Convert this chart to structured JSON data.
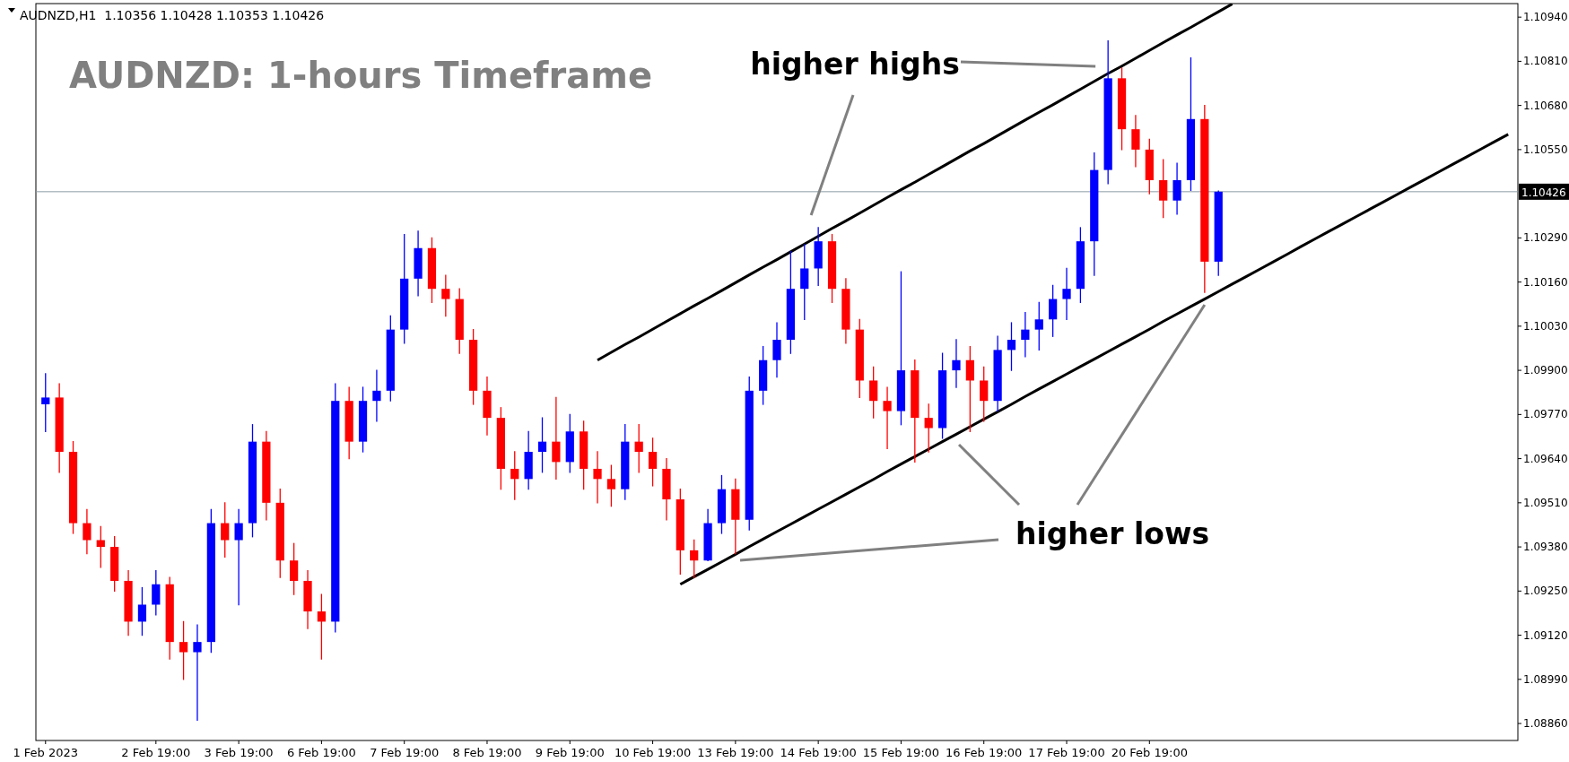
{
  "chart_data": {
    "type": "candlestick",
    "title": "AUDNZD: 1-hours Timeframe",
    "annotations": [
      "AUDNZD,H1  1.10356 1.10428 1.10353 1.10426",
      "higher highs",
      "higher lows"
    ],
    "categories": [
      "1 Feb 2023",
      null,
      null,
      null,
      null,
      null,
      null,
      null,
      "2 Feb 19:00",
      null,
      null,
      null,
      null,
      null,
      "3 Feb 19:00",
      null,
      null,
      null,
      null,
      null,
      "6 Feb 19:00",
      null,
      null,
      null,
      null,
      null,
      "7 Feb 19:00",
      null,
      null,
      null,
      null,
      null,
      "8 Feb 19:00",
      null,
      null,
      null,
      null,
      null,
      "9 Feb 19:00",
      null,
      null,
      null,
      null,
      null,
      "10 Feb 19:00",
      null,
      null,
      null,
      null,
      null,
      "13 Feb 19:00",
      null,
      null,
      null,
      null,
      null,
      "14 Feb 19:00",
      null,
      null,
      null,
      null,
      null,
      "15 Feb 19:00",
      null,
      null,
      null,
      null,
      null,
      "16 Feb 19:00",
      null,
      null,
      null,
      null,
      null,
      "17 Feb 19:00",
      null,
      null,
      null,
      null,
      null,
      "20 Feb 19:00",
      null,
      null,
      null,
      null,
      null,
      null,
      null,
      null,
      null,
      null,
      null,
      null,
      null,
      null,
      null,
      null,
      null,
      null,
      null,
      null,
      null,
      null,
      null,
      null,
      null,
      null
    ],
    "ylim": [
      1.0881,
      1.1098
    ],
    "yticks": [
      {
        "value": 1.0886,
        "label": "1.08860"
      },
      {
        "value": 1.0899,
        "label": "1.08990"
      },
      {
        "value": 1.0912,
        "label": "1.09120"
      },
      {
        "value": 1.0925,
        "label": "1.09250"
      },
      {
        "value": 1.0938,
        "label": "1.09380"
      },
      {
        "value": 1.0951,
        "label": "1.09510"
      },
      {
        "value": 1.0964,
        "label": "1.09640"
      },
      {
        "value": 1.0977,
        "label": "1.09770"
      },
      {
        "value": 1.099,
        "label": "1.09900"
      },
      {
        "value": 1.1003,
        "label": "1.10030"
      },
      {
        "value": 1.1016,
        "label": "1.10160"
      },
      {
        "value": 1.1029,
        "label": "1.10290"
      },
      {
        "value": 1.1055,
        "label": "1.10550"
      },
      {
        "value": 1.1068,
        "label": "1.10680"
      },
      {
        "value": 1.1081,
        "label": "1.10810"
      },
      {
        "value": 1.1094,
        "label": "1.10940"
      }
    ],
    "ref_lines": [
      {
        "axis": "y",
        "value": 1.10426,
        "label": "1.10426",
        "color": "#8c9aa6"
      }
    ],
    "series": [
      {
        "ohlc": [
          [
            1.098,
            1.0989,
            1.0972,
            1.0982
          ],
          [
            1.0982,
            1.0986,
            1.096,
            1.0966
          ],
          [
            1.0966,
            1.0969,
            1.0942,
            1.0945
          ],
          [
            1.0945,
            1.0949,
            1.0936,
            1.094
          ],
          [
            1.094,
            1.0944,
            1.0932,
            1.0938
          ],
          [
            1.0938,
            1.0941,
            1.0925,
            1.0928
          ],
          [
            1.0928,
            1.0931,
            1.0912,
            1.0916
          ],
          [
            1.0916,
            1.0926,
            1.0912,
            1.0921
          ],
          [
            1.0921,
            1.0931,
            1.0918,
            1.0927
          ],
          [
            1.0927,
            1.0929,
            1.0905,
            1.091
          ],
          [
            1.091,
            1.0916,
            1.0899,
            1.0907
          ],
          [
            1.0907,
            1.0915,
            1.0887,
            1.091
          ],
          [
            1.091,
            1.0949,
            1.0907,
            1.0945
          ],
          [
            1.0945,
            1.0951,
            1.0935,
            1.094
          ],
          [
            1.094,
            1.0949,
            1.0921,
            1.0945
          ],
          [
            1.0945,
            1.0974,
            1.0941,
            1.0969
          ],
          [
            1.0969,
            1.0972,
            1.0946,
            1.0951
          ],
          [
            1.0951,
            1.0955,
            1.0929,
            1.0934
          ],
          [
            1.0934,
            1.0939,
            1.0924,
            1.0928
          ],
          [
            1.0928,
            1.0931,
            1.0914,
            1.0919
          ],
          [
            1.0919,
            1.0924,
            1.0905,
            1.0916
          ],
          [
            1.0916,
            1.0986,
            1.0913,
            1.0981
          ],
          [
            1.0981,
            1.0985,
            1.0964,
            1.0969
          ],
          [
            1.0969,
            1.0985,
            1.0966,
            1.0981
          ],
          [
            1.0981,
            1.099,
            1.0975,
            1.0984
          ],
          [
            1.0984,
            1.1006,
            1.0981,
            1.1002
          ],
          [
            1.1002,
            1.103,
            1.0998,
            1.1017
          ],
          [
            1.1017,
            1.1031,
            1.1012,
            1.1026
          ],
          [
            1.1026,
            1.1029,
            1.101,
            1.1014
          ],
          [
            1.1014,
            1.1018,
            1.1006,
            1.1011
          ],
          [
            1.1011,
            1.1014,
            1.0995,
            1.0999
          ],
          [
            1.0999,
            1.1002,
            1.098,
            1.0984
          ],
          [
            1.0984,
            1.0988,
            1.0971,
            1.0976
          ],
          [
            1.0976,
            1.0979,
            1.0955,
            1.0961
          ],
          [
            1.0961,
            1.0966,
            1.0952,
            1.0958
          ],
          [
            1.0958,
            1.0972,
            1.0955,
            1.0966
          ],
          [
            1.0966,
            1.0976,
            1.096,
            1.0969
          ],
          [
            1.0969,
            1.0982,
            1.0958,
            1.0963
          ],
          [
            1.0963,
            1.0977,
            1.096,
            1.0972
          ],
          [
            1.0972,
            1.0975,
            1.0955,
            1.0961
          ],
          [
            1.0961,
            1.0966,
            1.0951,
            1.0958
          ],
          [
            1.0958,
            1.0962,
            1.095,
            1.0955
          ],
          [
            1.0955,
            1.0974,
            1.0952,
            1.0969
          ],
          [
            1.0969,
            1.0974,
            1.096,
            1.0966
          ],
          [
            1.0966,
            1.097,
            1.0956,
            1.0961
          ],
          [
            1.0961,
            1.0964,
            1.0946,
            1.0952
          ],
          [
            1.0952,
            1.0955,
            1.093,
            1.0937
          ],
          [
            1.0937,
            1.094,
            1.0929,
            1.0934
          ],
          [
            1.0934,
            1.0949,
            1.0934,
            1.0945
          ],
          [
            1.0945,
            1.0959,
            1.0942,
            1.0955
          ],
          [
            1.0955,
            1.0958,
            1.0936,
            1.0946
          ],
          [
            1.0946,
            1.0988,
            1.0943,
            1.0984
          ],
          [
            1.0984,
            1.0997,
            1.098,
            1.0993
          ],
          [
            1.0993,
            1.1004,
            1.0988,
            1.0999
          ],
          [
            1.0999,
            1.1025,
            1.0995,
            1.1014
          ],
          [
            1.1014,
            1.1027,
            1.1005,
            1.102
          ],
          [
            1.102,
            1.1032,
            1.1015,
            1.1028
          ],
          [
            1.1028,
            1.103,
            1.101,
            1.1014
          ],
          [
            1.1014,
            1.1017,
            1.0998,
            1.1002
          ],
          [
            1.1002,
            1.1005,
            1.0982,
            1.0987
          ],
          [
            1.0987,
            1.0991,
            1.0976,
            1.0981
          ],
          [
            1.0981,
            1.0985,
            1.0967,
            1.0978
          ],
          [
            1.0978,
            1.1019,
            1.0974,
            1.099
          ],
          [
            1.099,
            1.0993,
            1.0963,
            1.0976
          ],
          [
            1.0976,
            1.098,
            1.0966,
            1.0973
          ],
          [
            1.0973,
            1.0995,
            1.097,
            1.099
          ],
          [
            1.099,
            1.0999,
            1.0985,
            1.0993
          ],
          [
            1.0993,
            1.0997,
            1.0972,
            1.0987
          ],
          [
            1.0987,
            1.0991,
            1.0975,
            1.0981
          ],
          [
            1.0981,
            1.1,
            1.0978,
            1.0996
          ],
          [
            1.0996,
            1.1004,
            1.099,
            1.0999
          ],
          [
            1.0999,
            1.1007,
            1.0994,
            1.1002
          ],
          [
            1.1002,
            1.101,
            1.0996,
            1.1005
          ],
          [
            1.1005,
            1.1015,
            1.1,
            1.1011
          ],
          [
            1.1011,
            1.102,
            1.1005,
            1.1014
          ],
          [
            1.1014,
            1.1032,
            1.101,
            1.1028
          ],
          [
            1.1028,
            1.1054,
            1.1018,
            1.1049
          ],
          [
            1.1049,
            1.1087,
            1.1045,
            1.1076
          ],
          [
            1.1076,
            1.1079,
            1.1055,
            1.1061
          ],
          [
            1.1061,
            1.1065,
            1.105,
            1.1055
          ],
          [
            1.1055,
            1.1058,
            1.1042,
            1.1046
          ],
          [
            1.1046,
            1.1052,
            1.1035,
            1.104
          ],
          [
            1.104,
            1.1051,
            1.1036,
            1.1046
          ],
          [
            1.1046,
            1.1082,
            1.1043,
            1.1064
          ],
          [
            1.1064,
            1.1068,
            1.1013,
            1.1022
          ],
          [
            1.1022,
            1.10428,
            1.1018,
            1.10426
          ],
          null,
          null,
          null,
          null,
          null,
          null,
          null,
          null,
          null,
          null,
          null,
          null,
          null,
          null,
          null,
          null,
          null,
          null,
          null,
          null,
          null
        ]
      },
      {
        "type": "line",
        "color": "#000000",
        "values": [
          null,
          null,
          null,
          null,
          null,
          null,
          null,
          null,
          null,
          null,
          null,
          null,
          null,
          null,
          null,
          null,
          null,
          null,
          null,
          null,
          null,
          null,
          null,
          null,
          null,
          null,
          null,
          null,
          null,
          null,
          null,
          null,
          null,
          null,
          null,
          null,
          null,
          null,
          null,
          null,
          1.0993,
          1.09953,
          1.09976,
          1.09998,
          1.10021,
          1.10044,
          1.10067,
          1.1009,
          1.10112,
          1.10135,
          1.10158,
          1.10181,
          1.10204,
          1.10226,
          1.10249,
          1.10272,
          1.10295,
          1.10318,
          1.1034,
          1.10363,
          1.10386,
          1.10409,
          1.10432,
          1.10454,
          1.10477,
          1.105,
          1.10523,
          1.10546,
          1.10568,
          1.10591,
          1.10614,
          1.10637,
          1.1066,
          1.10682,
          1.10705,
          1.10728,
          1.10751,
          1.10774,
          1.10796,
          1.10819,
          1.10842,
          1.10865,
          1.10888,
          1.1091,
          1.10933,
          1.10956,
          1.10979,
          null,
          null,
          null,
          null,
          null,
          null,
          null,
          null,
          null,
          null,
          null,
          null,
          null,
          null,
          null,
          null,
          null,
          null,
          null,
          null
        ]
      },
      {
        "type": "line",
        "color": "#000000",
        "values": [
          null,
          null,
          null,
          null,
          null,
          null,
          null,
          null,
          null,
          null,
          null,
          null,
          null,
          null,
          null,
          null,
          null,
          null,
          null,
          null,
          null,
          null,
          null,
          null,
          null,
          null,
          null,
          null,
          null,
          null,
          null,
          null,
          null,
          null,
          null,
          null,
          null,
          null,
          null,
          null,
          null,
          null,
          null,
          null,
          null,
          null,
          1.0927,
          1.09292,
          1.09314,
          1.09336,
          1.09358,
          1.09381,
          1.09403,
          1.09425,
          1.09447,
          1.09469,
          1.09491,
          1.09513,
          1.09535,
          1.09557,
          1.09579,
          1.09602,
          1.09624,
          1.09646,
          1.09668,
          1.0969,
          1.09712,
          1.09734,
          1.09756,
          1.09778,
          1.098,
          1.09823,
          1.09845,
          1.09867,
          1.09889,
          1.09911,
          1.09933,
          1.09955,
          1.09977,
          1.09999,
          1.10021,
          1.10044,
          1.10066,
          1.10088,
          1.1011,
          1.10132,
          1.10154,
          1.10176,
          1.10198,
          1.1022,
          1.10242,
          1.10265,
          1.10287,
          1.10309,
          1.10331,
          1.10353,
          1.10375,
          1.10397,
          1.10419,
          1.10441,
          1.10463,
          1.10485,
          1.10507,
          1.10529,
          1.10551,
          1.10573,
          1.10595
        ]
      }
    ]
  }
}
